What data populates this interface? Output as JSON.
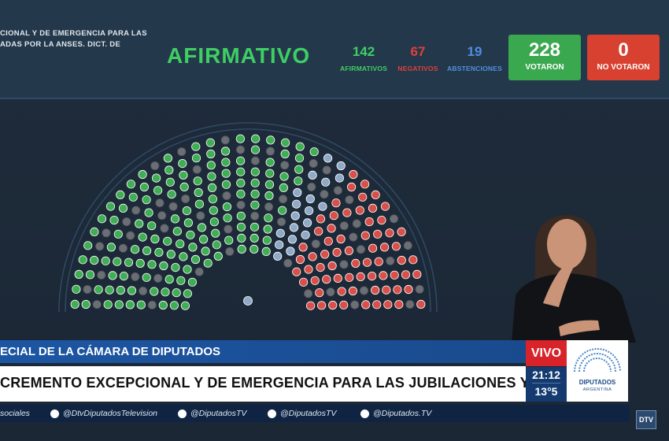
{
  "vote": {
    "bill_line1": "CIONAL Y DE EMERGENCIA PARA LAS",
    "bill_line2": "ADAS POR LA ANSES. DICT. DE",
    "result": "AFIRMATIVO",
    "afirmativos": {
      "value": "142",
      "label": "AFIRMATIVOS",
      "color": "#3ecf63"
    },
    "negativos": {
      "value": "67",
      "label": "NEGATIVOS",
      "color": "#e0403a"
    },
    "abstenciones": {
      "value": "19",
      "label": "ABSTENCIONES",
      "color": "#4f8fe0"
    },
    "votaron": {
      "value": "228",
      "label": "VOTARON",
      "color": "#3aa84f"
    },
    "no_votaron": {
      "value": "0",
      "label": "NO VOTARON",
      "color": "#d8402f"
    }
  },
  "chamber": {
    "afirmativo_seats": 142,
    "negativo_seats": 67,
    "abstencion_seats": 19,
    "ausente_seats": 29,
    "colors": {
      "afirmativo": "#3fae54",
      "negativo": "#d9504a",
      "abstencion": "#8fa9c8",
      "ausente": "#6b6f75"
    }
  },
  "lower_third": {
    "session": "ECIAL DE LA CÁMARA DE DIPUTADOS",
    "headline": "CREMENTO EXCEPCIONAL Y DE EMERGENCIA PARA LAS JUBILACIONES Y PENSIONES",
    "live": "VIVO",
    "time": "21:12",
    "temp": "13°5",
    "logo_title": "DIPUTADOS",
    "logo_sub": "ARGENTINA"
  },
  "social": {
    "label": "sociales",
    "youtube": "@DtvDiputadosTelevision",
    "x": "@DiputadosTV",
    "instagram": "@DiputadosTV",
    "tiktok": "@Diputados.TV"
  },
  "channel_badge": "DTV"
}
